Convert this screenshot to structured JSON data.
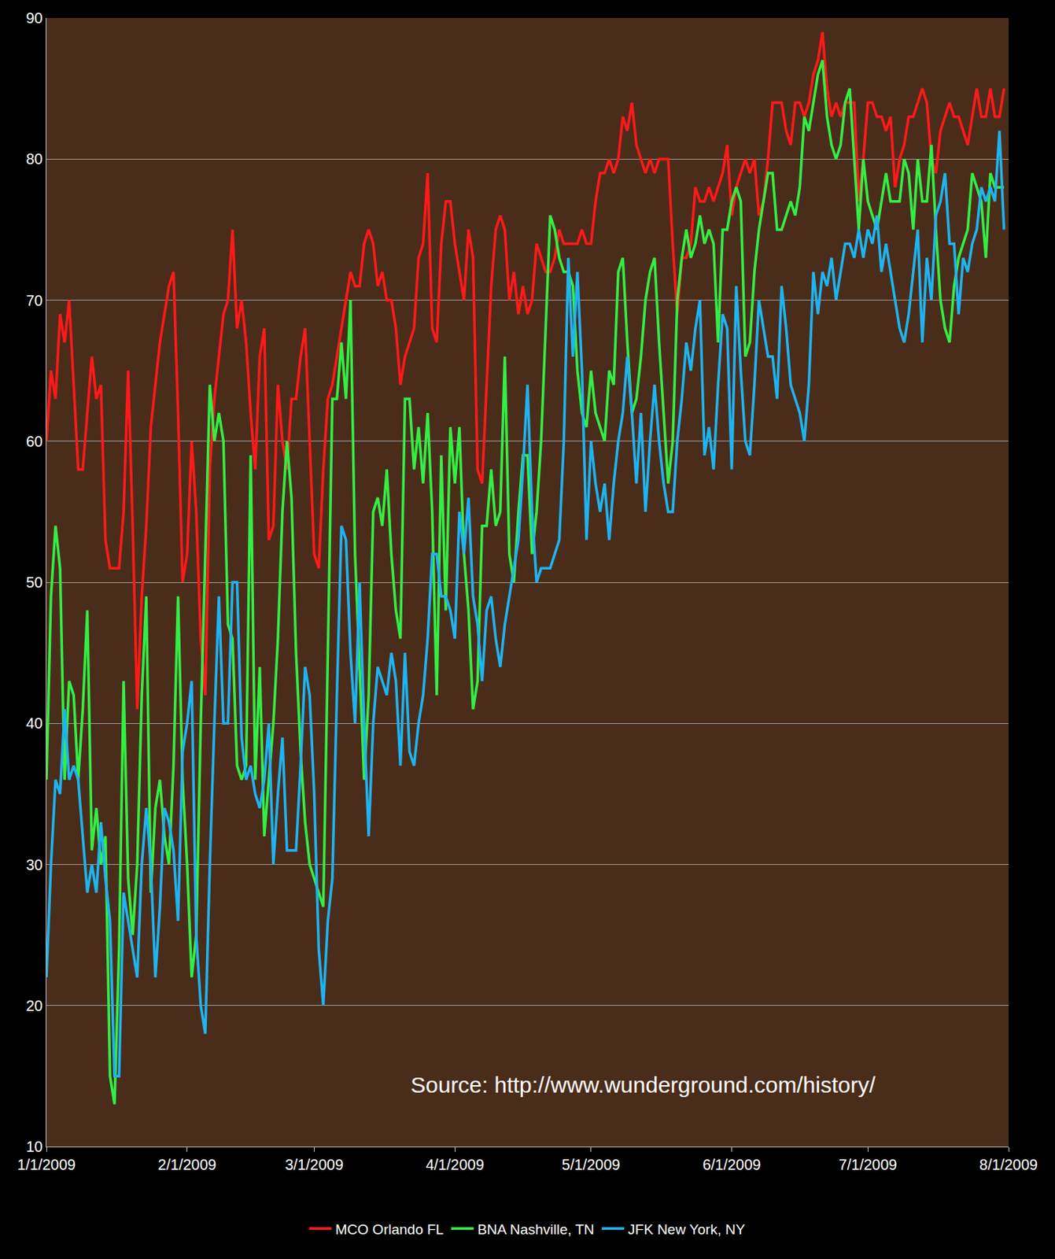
{
  "chart_data": {
    "type": "line",
    "annotation": "Source: http://www.wunderground.com/history/",
    "x": [
      "2009-01-01",
      "2009-01-02",
      "2009-01-03",
      "2009-01-04",
      "2009-01-05",
      "2009-01-06",
      "2009-01-07",
      "2009-01-08",
      "2009-01-09",
      "2009-01-10",
      "2009-01-11",
      "2009-01-12",
      "2009-01-13",
      "2009-01-14",
      "2009-01-15",
      "2009-01-16",
      "2009-01-17",
      "2009-01-18",
      "2009-01-19",
      "2009-01-20",
      "2009-01-21",
      "2009-01-22",
      "2009-01-23",
      "2009-01-24",
      "2009-01-25",
      "2009-01-26",
      "2009-01-27",
      "2009-01-28",
      "2009-01-29",
      "2009-01-30",
      "2009-01-31",
      "2009-02-01",
      "2009-02-02",
      "2009-02-03",
      "2009-02-04",
      "2009-02-05",
      "2009-02-06",
      "2009-02-07",
      "2009-02-08",
      "2009-02-09",
      "2009-02-10",
      "2009-02-11",
      "2009-02-12",
      "2009-02-13",
      "2009-02-14",
      "2009-02-15",
      "2009-02-16",
      "2009-02-17",
      "2009-02-18",
      "2009-02-19",
      "2009-02-20",
      "2009-02-21",
      "2009-02-22",
      "2009-02-23",
      "2009-02-24",
      "2009-02-25",
      "2009-02-26",
      "2009-02-27",
      "2009-02-28",
      "2009-03-01",
      "2009-03-02",
      "2009-03-03",
      "2009-03-04",
      "2009-03-05",
      "2009-03-06",
      "2009-03-07",
      "2009-03-08",
      "2009-03-09",
      "2009-03-10",
      "2009-03-11",
      "2009-03-12",
      "2009-03-13",
      "2009-03-14",
      "2009-03-15",
      "2009-03-16",
      "2009-03-17",
      "2009-03-18",
      "2009-03-19",
      "2009-03-20",
      "2009-03-21",
      "2009-03-22",
      "2009-03-23",
      "2009-03-24",
      "2009-03-25",
      "2009-03-26",
      "2009-03-27",
      "2009-03-28",
      "2009-03-29",
      "2009-03-30",
      "2009-03-31",
      "2009-04-01",
      "2009-04-02",
      "2009-04-03",
      "2009-04-04",
      "2009-04-05",
      "2009-04-06",
      "2009-04-07",
      "2009-04-08",
      "2009-04-09",
      "2009-04-10",
      "2009-04-11",
      "2009-04-12",
      "2009-04-13",
      "2009-04-14",
      "2009-04-15",
      "2009-04-16",
      "2009-04-17",
      "2009-04-18",
      "2009-04-19",
      "2009-04-20",
      "2009-04-21",
      "2009-04-22",
      "2009-04-23",
      "2009-04-24",
      "2009-04-25",
      "2009-04-26",
      "2009-04-27",
      "2009-04-28",
      "2009-04-29",
      "2009-04-30",
      "2009-05-01",
      "2009-05-02",
      "2009-05-03",
      "2009-05-04",
      "2009-05-05",
      "2009-05-06",
      "2009-05-07",
      "2009-05-08",
      "2009-05-09",
      "2009-05-10",
      "2009-05-11",
      "2009-05-12",
      "2009-05-13",
      "2009-05-14",
      "2009-05-15",
      "2009-05-16",
      "2009-05-17",
      "2009-05-18",
      "2009-05-19",
      "2009-05-20",
      "2009-05-21",
      "2009-05-22",
      "2009-05-23",
      "2009-05-24",
      "2009-05-25",
      "2009-05-26",
      "2009-05-27",
      "2009-05-28",
      "2009-05-29",
      "2009-05-30",
      "2009-05-31",
      "2009-06-01",
      "2009-06-02",
      "2009-06-03",
      "2009-06-04",
      "2009-06-05",
      "2009-06-06",
      "2009-06-07",
      "2009-06-08",
      "2009-06-09",
      "2009-06-10",
      "2009-06-11",
      "2009-06-12",
      "2009-06-13",
      "2009-06-14",
      "2009-06-15",
      "2009-06-16",
      "2009-06-17",
      "2009-06-18",
      "2009-06-19",
      "2009-06-20",
      "2009-06-21",
      "2009-06-22",
      "2009-06-23",
      "2009-06-24",
      "2009-06-25",
      "2009-06-26",
      "2009-06-27",
      "2009-06-28",
      "2009-06-29",
      "2009-06-30",
      "2009-07-01",
      "2009-07-02",
      "2009-07-03",
      "2009-07-04",
      "2009-07-05",
      "2009-07-06",
      "2009-07-07",
      "2009-07-08",
      "2009-07-09",
      "2009-07-10",
      "2009-07-11",
      "2009-07-12",
      "2009-07-13",
      "2009-07-14",
      "2009-07-15",
      "2009-07-16",
      "2009-07-17",
      "2009-07-18",
      "2009-07-19",
      "2009-07-20",
      "2009-07-21",
      "2009-07-22",
      "2009-07-23",
      "2009-07-24",
      "2009-07-25",
      "2009-07-26",
      "2009-07-27",
      "2009-07-28",
      "2009-07-29",
      "2009-07-30",
      "2009-07-31"
    ],
    "series": [
      {
        "name": "MCO Orlando FL",
        "color": "#ff1a1a",
        "values": [
          60,
          65,
          63,
          69,
          67,
          70,
          64,
          58,
          58,
          62,
          66,
          63,
          64,
          53,
          51,
          51,
          51,
          55,
          65,
          54,
          41,
          49,
          54,
          61,
          64,
          67,
          69,
          71,
          72,
          62,
          50,
          52,
          60,
          55,
          46,
          42,
          58,
          63,
          66,
          69,
          70,
          75,
          68,
          70,
          67,
          62,
          58,
          66,
          68,
          53,
          54,
          64,
          60,
          58,
          63,
          63,
          66,
          68,
          60,
          52,
          51,
          58,
          63,
          64,
          66,
          68,
          70,
          72,
          71,
          71,
          74,
          75,
          74,
          71,
          72,
          70,
          70,
          68,
          64,
          66,
          67,
          68,
          73,
          74,
          79,
          68,
          67,
          74,
          77,
          77,
          74,
          72,
          70,
          75,
          73,
          58,
          57,
          64,
          71,
          75,
          76,
          75,
          70,
          72,
          69,
          71,
          69,
          70,
          74,
          73,
          72,
          72,
          73,
          75,
          74,
          74,
          74,
          74,
          75,
          74,
          74,
          77,
          79,
          79,
          80,
          79,
          80,
          83,
          82,
          84,
          81,
          80,
          79,
          80,
          79,
          80,
          80,
          80,
          74,
          69,
          73,
          73,
          74,
          78,
          77,
          77,
          78,
          77,
          78,
          79,
          81,
          76,
          78,
          79,
          80,
          79,
          80,
          76,
          77,
          80,
          84,
          84,
          84,
          82,
          81,
          84,
          84,
          83,
          84,
          86,
          87,
          89,
          85,
          83,
          84,
          83,
          84,
          84,
          84,
          77,
          80,
          84,
          84,
          83,
          83,
          82,
          83,
          78,
          80,
          81,
          83,
          83,
          84,
          85,
          84,
          80,
          79,
          82,
          83,
          84,
          83,
          83,
          82,
          81,
          83,
          85,
          83,
          83,
          85,
          83,
          83,
          85
        ]
      },
      {
        "name": "BNA Nashville, TN",
        "color": "#33ee44",
        "values": [
          36,
          49,
          54,
          51,
          36,
          43,
          42,
          36,
          41,
          48,
          31,
          34,
          30,
          32,
          15,
          13,
          24,
          43,
          29,
          25,
          30,
          42,
          49,
          28,
          34,
          36,
          32,
          30,
          37,
          49,
          36,
          30,
          22,
          25,
          40,
          52,
          64,
          60,
          62,
          60,
          47,
          46,
          37,
          36,
          37,
          59,
          36,
          44,
          32,
          36,
          40,
          46,
          55,
          60,
          56,
          45,
          38,
          33,
          30,
          29,
          28,
          27,
          45,
          63,
          63,
          67,
          63,
          70,
          52,
          44,
          36,
          42,
          55,
          56,
          54,
          58,
          52,
          48,
          46,
          63,
          63,
          58,
          61,
          57,
          62,
          55,
          42,
          59,
          48,
          61,
          57,
          61,
          52,
          48,
          41,
          43,
          54,
          54,
          58,
          54,
          55,
          66,
          52,
          50,
          55,
          59,
          59,
          52,
          55,
          60,
          68,
          76,
          75,
          73,
          72,
          72,
          71,
          65,
          62,
          61,
          65,
          62,
          61,
          60,
          65,
          64,
          72,
          73,
          67,
          62,
          63,
          66,
          70,
          72,
          73,
          67,
          62,
          57,
          60,
          70,
          73,
          75,
          73,
          74,
          76,
          74,
          75,
          74,
          67,
          75,
          75,
          77,
          78,
          77,
          66,
          67,
          72,
          75,
          77,
          79,
          79,
          75,
          75,
          76,
          77,
          76,
          78,
          83,
          82,
          84,
          86,
          87,
          83,
          81,
          80,
          81,
          84,
          85,
          80,
          75,
          80,
          77,
          76,
          75,
          77,
          79,
          77,
          77,
          77,
          80,
          79,
          75,
          80,
          77,
          77,
          81,
          75,
          70,
          68,
          67,
          71,
          73,
          74,
          75,
          79,
          78,
          77,
          73,
          79,
          78,
          78,
          78
        ]
      },
      {
        "name": "JFK New York, NY",
        "color": "#1eb4f0",
        "values": [
          22,
          30,
          36,
          35,
          41,
          36,
          37,
          36,
          32,
          28,
          30,
          28,
          33,
          29,
          26,
          15,
          15,
          28,
          26,
          24,
          22,
          30,
          34,
          30,
          22,
          27,
          34,
          33,
          31,
          26,
          38,
          40,
          43,
          25,
          20,
          18,
          30,
          40,
          49,
          40,
          40,
          50,
          50,
          39,
          36,
          37,
          35,
          34,
          36,
          40,
          30,
          35,
          39,
          31,
          31,
          31,
          37,
          44,
          42,
          35,
          24,
          20,
          26,
          29,
          42,
          54,
          53,
          45,
          40,
          50,
          40,
          32,
          40,
          44,
          43,
          42,
          45,
          43,
          37,
          45,
          38,
          37,
          40,
          42,
          46,
          52,
          52,
          49,
          49,
          48,
          46,
          55,
          52,
          56,
          49,
          47,
          43,
          48,
          49,
          46,
          44,
          47,
          49,
          51,
          53,
          58,
          64,
          55,
          50,
          51,
          51,
          51,
          52,
          53,
          60,
          73,
          66,
          72,
          65,
          53,
          60,
          57,
          55,
          57,
          53,
          57,
          60,
          62,
          66,
          62,
          57,
          62,
          55,
          60,
          64,
          60,
          57,
          55,
          55,
          60,
          63,
          67,
          65,
          68,
          70,
          59,
          61,
          58,
          64,
          69,
          68,
          58,
          71,
          65,
          60,
          59,
          64,
          70,
          68,
          66,
          66,
          63,
          71,
          68,
          64,
          63,
          62,
          60,
          64,
          72,
          69,
          72,
          71,
          73,
          70,
          72,
          74,
          74,
          73,
          75,
          73,
          75,
          74,
          76,
          72,
          74,
          72,
          70,
          68,
          67,
          69,
          72,
          75,
          67,
          73,
          70,
          76,
          77,
          79,
          74,
          74,
          69,
          73,
          72,
          74,
          75,
          78,
          77,
          78,
          77,
          82,
          75
        ]
      }
    ],
    "xlim": [
      "2009-01-01",
      "2009-08-01"
    ],
    "xticks": [
      {
        "value": "2009-01-01",
        "label": "1/1/2009"
      },
      {
        "value": "2009-02-01",
        "label": "2/1/2009"
      },
      {
        "value": "2009-03-01",
        "label": "3/1/2009"
      },
      {
        "value": "2009-04-01",
        "label": "4/1/2009"
      },
      {
        "value": "2009-05-01",
        "label": "5/1/2009"
      },
      {
        "value": "2009-06-01",
        "label": "6/1/2009"
      },
      {
        "value": "2009-07-01",
        "label": "7/1/2009"
      },
      {
        "value": "2009-08-01",
        "label": "8/1/2009"
      }
    ],
    "ylim": [
      10,
      90
    ],
    "yticks": [
      10,
      20,
      30,
      40,
      50,
      60,
      70,
      80,
      90
    ],
    "grid": true,
    "legend": "bottom"
  }
}
